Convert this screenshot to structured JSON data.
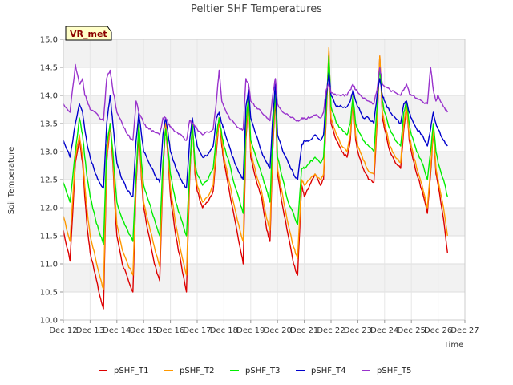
{
  "chart_data": {
    "type": "line",
    "title": "Peltier SHF Temperatures",
    "xlabel": "Time",
    "ylabel": "Soil Temperature",
    "badge": "VR_met",
    "xlim": [
      12,
      27
    ],
    "ylim": [
      10.0,
      15.0
    ],
    "x_ticks": [
      12,
      13,
      14,
      15,
      16,
      17,
      18,
      19,
      20,
      21,
      22,
      23,
      24,
      25,
      26,
      27
    ],
    "x_tick_labels": [
      "Dec 12",
      "Dec 13",
      "Dec 14",
      "Dec 15",
      "Dec 16",
      "Dec 17",
      "Dec 18",
      "Dec 19",
      "Dec 20",
      "Dec 21",
      "Dec 22",
      "Dec 23",
      "Dec 24",
      "Dec 25",
      "Dec 26",
      "Dec 27"
    ],
    "y_ticks": [
      10.0,
      10.5,
      11.0,
      11.5,
      12.0,
      12.5,
      13.0,
      13.5,
      14.0,
      14.5,
      15.0
    ],
    "y_tick_labels": [
      "10.0",
      "10.5",
      "11.0",
      "11.5",
      "12.0",
      "12.5",
      "13.0",
      "13.5",
      "14.0",
      "14.5",
      "15.0"
    ],
    "grid": true,
    "legend_position": "bottom",
    "series": [
      {
        "name": "pSHF_T1",
        "color": "#dd0000",
        "x": [
          12.0,
          12.25,
          12.45,
          12.6,
          12.72,
          12.8,
          12.9,
          13.0,
          13.2,
          13.35,
          13.5,
          13.62,
          13.75,
          13.85,
          13.93,
          14.0,
          14.2,
          14.4,
          14.6,
          14.72,
          14.82,
          14.92,
          15.0,
          15.2,
          15.4,
          15.6,
          15.72,
          15.82,
          15.92,
          16.0,
          16.2,
          16.4,
          16.6,
          16.72,
          16.82,
          16.92,
          17.0,
          17.2,
          17.4,
          17.6,
          17.72,
          17.82,
          17.92,
          18.0,
          18.2,
          18.4,
          18.6,
          18.72,
          18.82,
          18.92,
          19.0,
          19.2,
          19.4,
          19.6,
          19.72,
          19.82,
          19.92,
          20.0,
          20.2,
          20.4,
          20.6,
          20.75,
          20.9,
          21.0,
          21.2,
          21.4,
          21.6,
          21.72,
          21.82,
          21.92,
          22.0,
          22.2,
          22.4,
          22.6,
          22.72,
          22.82,
          22.92,
          23.0,
          23.2,
          23.4,
          23.6,
          23.72,
          23.82,
          23.92,
          24.0,
          24.2,
          24.4,
          24.6,
          24.72,
          24.82,
          24.92,
          25.0,
          25.2,
          25.4,
          25.6,
          25.72,
          25.82,
          25.92,
          26.0,
          26.2,
          26.35
        ],
        "values": [
          11.6,
          11.05,
          12.8,
          13.2,
          12.8,
          12.2,
          11.6,
          11.2,
          10.8,
          10.45,
          10.2,
          12.8,
          13.5,
          12.8,
          12.0,
          11.5,
          11.0,
          10.75,
          10.5,
          12.4,
          13.4,
          12.5,
          12.0,
          11.5,
          11.0,
          10.7,
          12.6,
          13.5,
          12.8,
          12.2,
          11.5,
          11.0,
          10.5,
          12.5,
          13.5,
          12.6,
          12.3,
          12.0,
          12.1,
          12.3,
          13.0,
          13.6,
          13.1,
          12.8,
          12.3,
          11.8,
          11.3,
          11.0,
          13.2,
          14.0,
          12.9,
          12.5,
          12.2,
          11.6,
          11.4,
          13.0,
          14.0,
          12.6,
          12.0,
          11.5,
          11.0,
          10.8,
          12.4,
          12.2,
          12.4,
          12.6,
          12.4,
          12.5,
          13.6,
          14.8,
          13.5,
          13.2,
          13.0,
          12.9,
          13.2,
          14.0,
          13.2,
          13.0,
          12.7,
          12.5,
          12.45,
          13.5,
          14.7,
          13.6,
          13.4,
          13.0,
          12.8,
          12.7,
          13.4,
          13.8,
          13.2,
          13.0,
          12.6,
          12.3,
          11.9,
          12.6,
          13.4,
          12.6,
          12.4,
          11.8,
          11.2
        ]
      },
      {
        "name": "pSHF_T2",
        "color": "#ff9900",
        "x": [
          12.0,
          12.25,
          12.45,
          12.6,
          12.72,
          12.8,
          12.9,
          13.0,
          13.2,
          13.35,
          13.5,
          13.62,
          13.75,
          13.85,
          13.93,
          14.0,
          14.2,
          14.4,
          14.6,
          14.72,
          14.82,
          14.92,
          15.0,
          15.2,
          15.4,
          15.6,
          15.72,
          15.82,
          15.92,
          16.0,
          16.2,
          16.4,
          16.6,
          16.72,
          16.82,
          16.92,
          17.0,
          17.2,
          17.4,
          17.6,
          17.72,
          17.82,
          17.92,
          18.0,
          18.2,
          18.4,
          18.6,
          18.72,
          18.82,
          18.92,
          19.0,
          19.2,
          19.4,
          19.6,
          19.72,
          19.82,
          19.92,
          20.0,
          20.2,
          20.4,
          20.6,
          20.75,
          20.9,
          21.0,
          21.2,
          21.4,
          21.6,
          21.72,
          21.82,
          21.92,
          22.0,
          22.2,
          22.4,
          22.6,
          22.72,
          22.82,
          22.92,
          23.0,
          23.2,
          23.4,
          23.6,
          23.72,
          23.82,
          23.92,
          24.0,
          24.2,
          24.4,
          24.6,
          24.72,
          24.82,
          24.92,
          25.0,
          25.2,
          25.4,
          25.6,
          25.72,
          25.82,
          25.92,
          26.0,
          26.2,
          26.35
        ],
        "values": [
          11.85,
          11.4,
          12.9,
          13.3,
          12.9,
          12.4,
          11.9,
          11.5,
          11.1,
          10.8,
          10.55,
          12.9,
          13.5,
          12.9,
          12.2,
          11.7,
          11.25,
          11.0,
          10.8,
          12.5,
          13.5,
          12.6,
          12.1,
          11.7,
          11.3,
          10.95,
          12.7,
          13.5,
          12.9,
          12.35,
          11.7,
          11.2,
          10.8,
          12.6,
          13.5,
          12.7,
          12.4,
          12.1,
          12.2,
          12.4,
          13.1,
          13.6,
          13.2,
          12.9,
          12.45,
          12.0,
          11.6,
          11.4,
          13.3,
          14.0,
          13.0,
          12.6,
          12.3,
          11.8,
          11.6,
          13.1,
          14.1,
          12.7,
          12.2,
          11.7,
          11.3,
          11.1,
          12.5,
          12.4,
          12.5,
          12.6,
          12.5,
          12.6,
          13.7,
          14.85,
          13.6,
          13.3,
          13.1,
          13.0,
          13.3,
          14.0,
          13.3,
          13.1,
          12.85,
          12.65,
          12.6,
          13.6,
          14.7,
          13.7,
          13.5,
          13.1,
          12.9,
          12.8,
          13.5,
          13.8,
          13.3,
          13.1,
          12.7,
          12.4,
          12.0,
          12.7,
          13.4,
          12.7,
          12.5,
          12.0,
          11.5
        ]
      },
      {
        "name": "pSHF_T3",
        "color": "#00ee00",
        "x": [
          12.0,
          12.25,
          12.45,
          12.6,
          12.72,
          12.8,
          12.9,
          13.0,
          13.2,
          13.35,
          13.5,
          13.62,
          13.75,
          13.85,
          13.93,
          14.0,
          14.2,
          14.4,
          14.6,
          14.72,
          14.82,
          14.92,
          15.0,
          15.2,
          15.4,
          15.6,
          15.72,
          15.82,
          15.92,
          16.0,
          16.2,
          16.4,
          16.6,
          16.72,
          16.82,
          16.92,
          17.0,
          17.2,
          17.4,
          17.6,
          17.72,
          17.82,
          17.92,
          18.0,
          18.2,
          18.4,
          18.6,
          18.72,
          18.82,
          18.92,
          19.0,
          19.2,
          19.4,
          19.6,
          19.72,
          19.82,
          19.92,
          20.0,
          20.2,
          20.4,
          20.6,
          20.75,
          20.9,
          21.0,
          21.2,
          21.4,
          21.6,
          21.72,
          21.82,
          21.92,
          22.0,
          22.2,
          22.4,
          22.6,
          22.72,
          22.82,
          22.92,
          23.0,
          23.2,
          23.4,
          23.6,
          23.72,
          23.82,
          23.92,
          24.0,
          24.2,
          24.4,
          24.6,
          24.72,
          24.82,
          24.92,
          25.0,
          25.2,
          25.4,
          25.6,
          25.72,
          25.82,
          25.92,
          26.0,
          26.2,
          26.35
        ],
        "values": [
          12.45,
          12.1,
          13.0,
          13.6,
          13.3,
          12.9,
          12.5,
          12.2,
          11.8,
          11.55,
          11.35,
          13.1,
          13.5,
          13.0,
          12.5,
          12.1,
          11.8,
          11.6,
          11.4,
          12.6,
          13.5,
          12.8,
          12.4,
          12.1,
          11.8,
          11.5,
          12.8,
          13.4,
          13.0,
          12.6,
          12.1,
          11.8,
          11.5,
          12.7,
          13.5,
          12.8,
          12.6,
          12.4,
          12.5,
          12.7,
          13.3,
          13.6,
          13.3,
          13.1,
          12.8,
          12.4,
          12.1,
          11.9,
          13.5,
          14.0,
          13.2,
          12.9,
          12.6,
          12.3,
          12.1,
          13.3,
          14.1,
          12.9,
          12.5,
          12.1,
          11.9,
          11.7,
          12.7,
          12.7,
          12.8,
          12.9,
          12.8,
          12.9,
          13.8,
          14.7,
          13.8,
          13.5,
          13.4,
          13.3,
          13.5,
          14.0,
          13.5,
          13.4,
          13.2,
          13.1,
          13.0,
          13.8,
          14.5,
          13.9,
          13.7,
          13.4,
          13.2,
          13.1,
          13.7,
          13.9,
          13.5,
          13.3,
          13.0,
          12.8,
          12.5,
          13.0,
          13.5,
          13.0,
          12.8,
          12.5,
          12.2
        ]
      },
      {
        "name": "pSHF_T4",
        "color": "#0000cc",
        "x": [
          12.0,
          12.25,
          12.45,
          12.6,
          12.72,
          12.8,
          12.9,
          13.0,
          13.2,
          13.35,
          13.5,
          13.62,
          13.75,
          13.85,
          13.93,
          14.0,
          14.2,
          14.4,
          14.6,
          14.72,
          14.82,
          14.92,
          15.0,
          15.2,
          15.4,
          15.6,
          15.72,
          15.82,
          15.92,
          16.0,
          16.2,
          16.4,
          16.6,
          16.72,
          16.82,
          16.92,
          17.0,
          17.2,
          17.4,
          17.6,
          17.72,
          17.82,
          17.92,
          18.0,
          18.2,
          18.4,
          18.6,
          18.72,
          18.82,
          18.92,
          19.0,
          19.2,
          19.4,
          19.6,
          19.72,
          19.82,
          19.92,
          20.0,
          20.2,
          20.4,
          20.6,
          20.75,
          20.9,
          21.0,
          21.2,
          21.4,
          21.6,
          21.72,
          21.82,
          21.92,
          22.0,
          22.2,
          22.4,
          22.6,
          22.72,
          22.82,
          22.92,
          23.0,
          23.2,
          23.4,
          23.6,
          23.72,
          23.82,
          23.92,
          24.0,
          24.2,
          24.4,
          24.6,
          24.72,
          24.82,
          24.92,
          25.0,
          25.2,
          25.4,
          25.6,
          25.72,
          25.82,
          25.92,
          26.0,
          26.2,
          26.35
        ],
        "values": [
          13.2,
          12.9,
          13.5,
          13.85,
          13.7,
          13.4,
          13.1,
          12.9,
          12.6,
          12.45,
          12.35,
          13.5,
          14.0,
          13.5,
          13.1,
          12.8,
          12.5,
          12.3,
          12.2,
          13.2,
          13.7,
          13.3,
          13.0,
          12.8,
          12.6,
          12.45,
          13.3,
          13.6,
          13.3,
          13.0,
          12.7,
          12.5,
          12.35,
          13.2,
          13.6,
          13.3,
          13.1,
          12.9,
          12.95,
          13.1,
          13.6,
          13.7,
          13.5,
          13.4,
          13.1,
          12.8,
          12.6,
          12.5,
          13.8,
          14.1,
          13.6,
          13.3,
          13.0,
          12.8,
          12.7,
          13.6,
          14.2,
          13.3,
          13.0,
          12.8,
          12.6,
          12.5,
          13.1,
          13.2,
          13.2,
          13.3,
          13.2,
          13.3,
          14.0,
          14.4,
          14.0,
          13.8,
          13.8,
          13.8,
          13.9,
          14.1,
          13.9,
          13.8,
          13.6,
          13.6,
          13.5,
          14.0,
          14.3,
          14.0,
          13.9,
          13.7,
          13.6,
          13.5,
          13.85,
          13.9,
          13.7,
          13.6,
          13.4,
          13.3,
          13.1,
          13.4,
          13.7,
          13.5,
          13.4,
          13.2,
          13.1
        ]
      },
      {
        "name": "pSHF_T5",
        "color": "#9933cc",
        "x": [
          12.0,
          12.25,
          12.45,
          12.6,
          12.72,
          12.8,
          12.9,
          13.0,
          13.2,
          13.35,
          13.5,
          13.62,
          13.75,
          13.85,
          13.93,
          14.0,
          14.2,
          14.4,
          14.6,
          14.72,
          14.82,
          14.92,
          15.0,
          15.2,
          15.4,
          15.6,
          15.72,
          15.82,
          15.92,
          16.0,
          16.2,
          16.4,
          16.6,
          16.72,
          16.82,
          16.92,
          17.0,
          17.2,
          17.4,
          17.6,
          17.72,
          17.82,
          17.92,
          18.0,
          18.2,
          18.4,
          18.6,
          18.72,
          18.82,
          18.92,
          19.0,
          19.2,
          19.4,
          19.6,
          19.72,
          19.82,
          19.92,
          20.0,
          20.2,
          20.4,
          20.6,
          20.75,
          20.9,
          21.0,
          21.2,
          21.4,
          21.6,
          21.72,
          21.82,
          21.92,
          22.0,
          22.2,
          22.4,
          22.6,
          22.72,
          22.82,
          22.92,
          23.0,
          23.2,
          23.4,
          23.6,
          23.72,
          23.82,
          23.92,
          24.0,
          24.2,
          24.4,
          24.6,
          24.72,
          24.82,
          24.92,
          25.0,
          25.2,
          25.4,
          25.6,
          25.72,
          25.82,
          25.92,
          26.0,
          26.2,
          26.35
        ],
        "values": [
          13.85,
          13.7,
          14.55,
          14.2,
          14.3,
          14.0,
          13.9,
          13.75,
          13.7,
          13.6,
          13.55,
          14.3,
          14.45,
          14.1,
          13.9,
          13.7,
          13.5,
          13.3,
          13.2,
          13.9,
          13.7,
          13.6,
          13.5,
          13.4,
          13.35,
          13.3,
          13.6,
          13.6,
          13.5,
          13.45,
          13.35,
          13.3,
          13.2,
          13.55,
          13.5,
          13.45,
          13.4,
          13.3,
          13.35,
          13.4,
          13.9,
          14.45,
          13.9,
          13.8,
          13.6,
          13.5,
          13.4,
          13.4,
          14.3,
          14.2,
          13.9,
          13.8,
          13.7,
          13.6,
          13.55,
          14.0,
          14.3,
          13.85,
          13.7,
          13.65,
          13.6,
          13.55,
          13.6,
          13.6,
          13.6,
          13.65,
          13.6,
          13.7,
          14.1,
          14.2,
          14.05,
          14.0,
          14.0,
          14.0,
          14.1,
          14.2,
          14.1,
          14.05,
          13.95,
          13.9,
          13.85,
          14.1,
          14.5,
          14.2,
          14.15,
          14.1,
          14.05,
          14.0,
          14.1,
          14.2,
          14.05,
          14.0,
          13.95,
          13.9,
          13.85,
          14.5,
          14.1,
          13.9,
          14.0,
          13.8,
          13.7
        ]
      }
    ]
  }
}
